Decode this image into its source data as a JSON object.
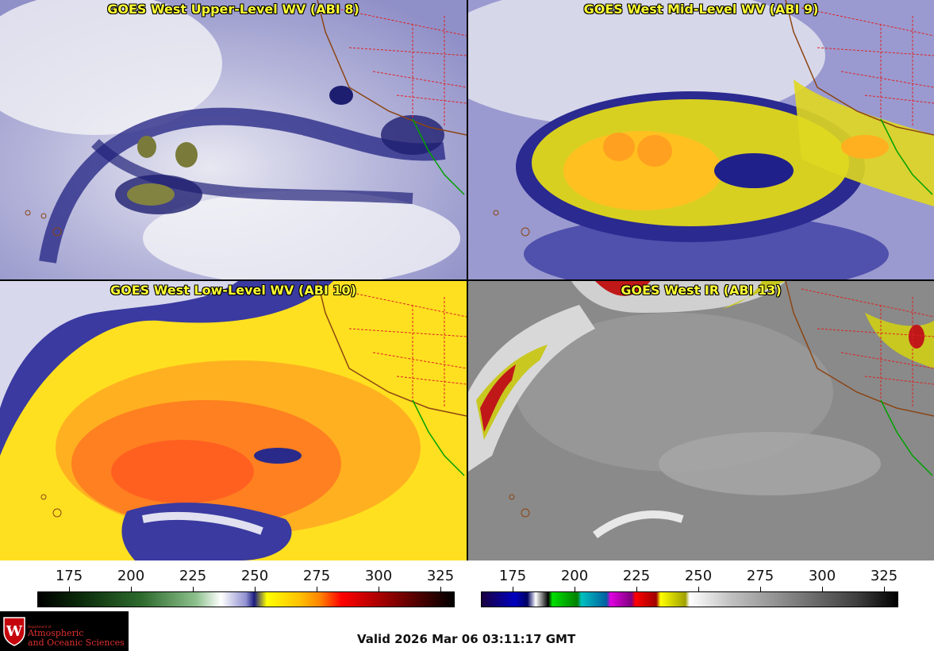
{
  "panels": {
    "upper": {
      "title": "GOES West Upper-Level WV (ABI 8)"
    },
    "mid": {
      "title": "GOES West Mid-Level WV (ABI 9)"
    },
    "low": {
      "title": "GOES West Low-Level WV (ABI 10)"
    },
    "ir": {
      "title": "GOES West IR (ABI 13)"
    }
  },
  "colorbar_left": {
    "ticks": [
      "175",
      "200",
      "225",
      "250",
      "275",
      "300",
      "325"
    ],
    "stops": [
      "#000000",
      "#0a2a0a",
      "#2e6b2e",
      "#8cc08c",
      "#ffffff",
      "#2a2aa0",
      "#ffff00",
      "#ff8000",
      "#ff0000",
      "#800000",
      "#000000"
    ]
  },
  "colorbar_right": {
    "ticks": [
      "175",
      "200",
      "225",
      "250",
      "275",
      "300",
      "325"
    ]
  },
  "logo": {
    "small": "Department of",
    "line1": "Atmospheric",
    "line2": "and Oceanic Sciences"
  },
  "valid_time": "Valid 2026 Mar 06 03:11:17 GMT"
}
